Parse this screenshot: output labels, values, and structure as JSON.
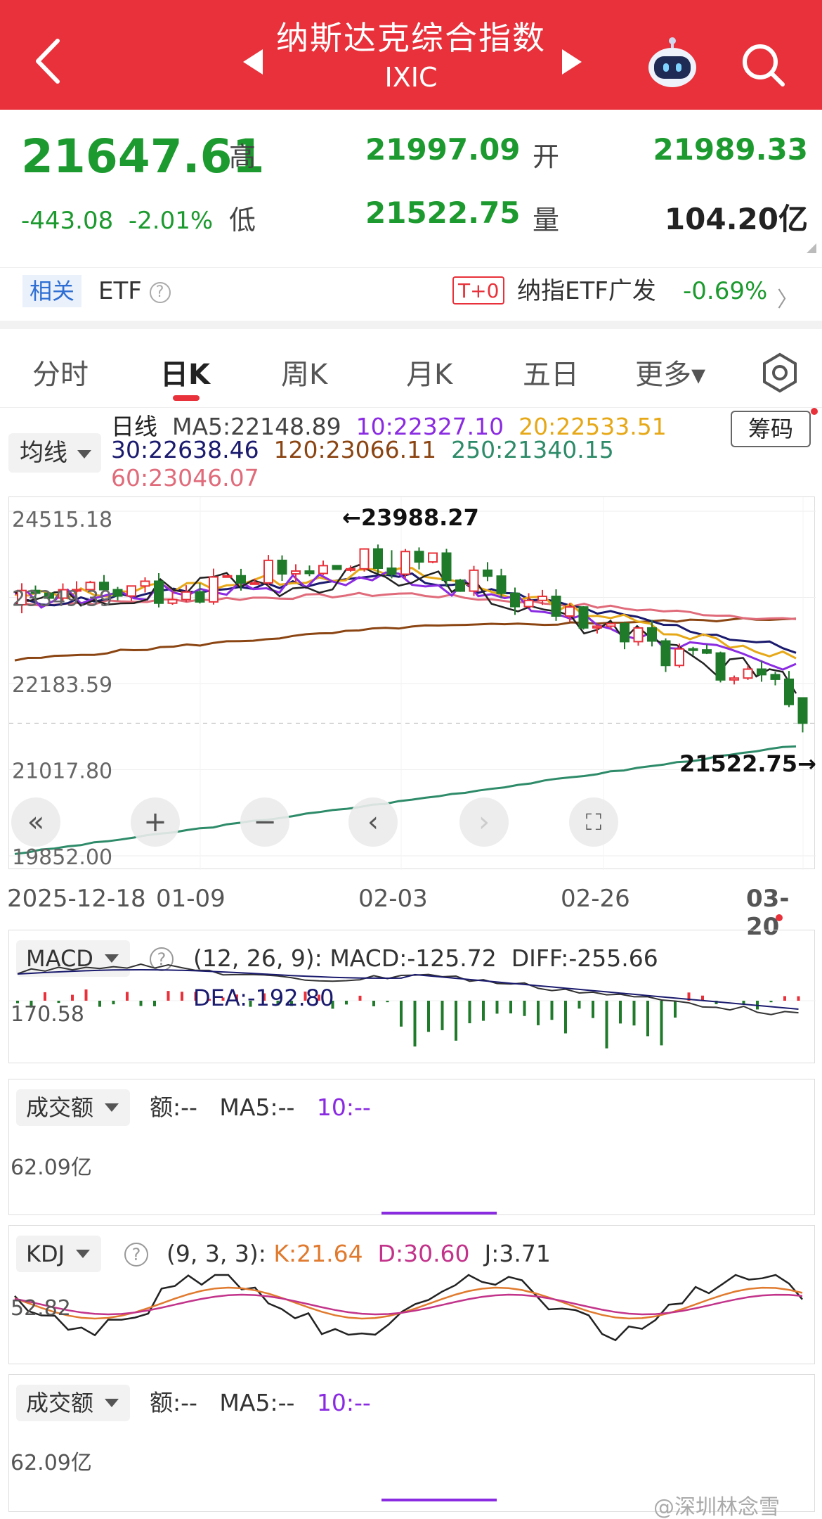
{
  "header": {
    "title": "纳斯达克综合指数",
    "subtitle": "IXIC"
  },
  "quote": {
    "price": "21647.61",
    "change": "-443.08",
    "change_pct": "-2.01%",
    "high_label": "高",
    "high": "21997.09",
    "low_label": "低",
    "low": "21522.75",
    "open_label": "开",
    "open": "21989.33",
    "volume_label": "量",
    "volume": "104.20亿"
  },
  "etf": {
    "tag": "相关",
    "label": "ETF",
    "t0": "T+0",
    "name": "纳指ETF广发",
    "change": "-0.69%"
  },
  "tabs": [
    {
      "label": "分时"
    },
    {
      "label": "日K"
    },
    {
      "label": "周K"
    },
    {
      "label": "月K"
    },
    {
      "label": "五日"
    },
    {
      "label": "更多▾"
    }
  ],
  "ma": {
    "selector": "均线",
    "chip": "筹码",
    "title": "日线",
    "ma5": "MA5:22148.89",
    "ma10": "10:22327.10",
    "ma20": "20:22533.51",
    "ma30": "30:22638.46",
    "ma120": "120:23066.11",
    "ma250": "250:21340.15",
    "ma60": "60:23046.07",
    "colors": {
      "ma5": "#222222",
      "ma10": "#8a2be2",
      "ma20": "#e6a817",
      "ma30": "#1a1a6e",
      "ma120": "#8b4513",
      "ma250": "#2e8b6a",
      "ma60": "#e06b7a"
    }
  },
  "kline": {
    "y_labels": [
      "24515.18",
      "23349.39",
      "22183.59",
      "21017.80",
      "19852.00"
    ],
    "high_marker": "←23988.27",
    "low_marker": "21522.75→",
    "bull_color": "#e8313a",
    "bear_color": "#1f7a2a"
  },
  "dates": [
    "2025-12-18",
    "01-09",
    "02-03",
    "02-26",
    "03-20"
  ],
  "macd": {
    "selector": "MACD",
    "params": "(12, 26, 9):",
    "macd": "MACD:-125.72",
    "diff": "DIFF:-255.66",
    "dea": "DEA:-192.80",
    "axis": "170.58"
  },
  "volume1": {
    "selector": "成交额",
    "amount": "额:--",
    "ma5": "MA5:--",
    "ma10": "10:--",
    "axis": "62.09亿"
  },
  "kdj": {
    "selector": "KDJ",
    "params": "(9, 3, 3):",
    "k": "K:21.64",
    "d": "D:30.60",
    "j": "J:3.71",
    "axis": "52.82"
  },
  "volume2": {
    "selector": "成交额",
    "amount": "额:--",
    "ma5": "MA5:--",
    "ma10": "10:--",
    "axis": "62.09亿"
  },
  "watermark": "@深圳林念雪",
  "chart_data": {
    "type": "candlestick",
    "title": "日线",
    "ylim": [
      19852.0,
      24515.18
    ],
    "x_ticks": [
      "2025-12-18",
      "01-09",
      "02-03",
      "02-26",
      "03-20"
    ],
    "series": [
      {
        "name": "MA5",
        "value": 22148.89
      },
      {
        "name": "10",
        "value": 22327.1
      },
      {
        "name": "20",
        "value": 22533.51
      },
      {
        "name": "30",
        "value": 22638.46
      },
      {
        "name": "120",
        "value": 23066.11
      },
      {
        "name": "250",
        "value": 21340.15
      },
      {
        "name": "60",
        "value": 23046.07
      }
    ],
    "annotations": [
      "←23988.27",
      "21522.75→"
    ],
    "last_candle": {
      "open": 21989.33,
      "high": 21997.09,
      "low": 21522.75,
      "close": 21647.61
    }
  }
}
